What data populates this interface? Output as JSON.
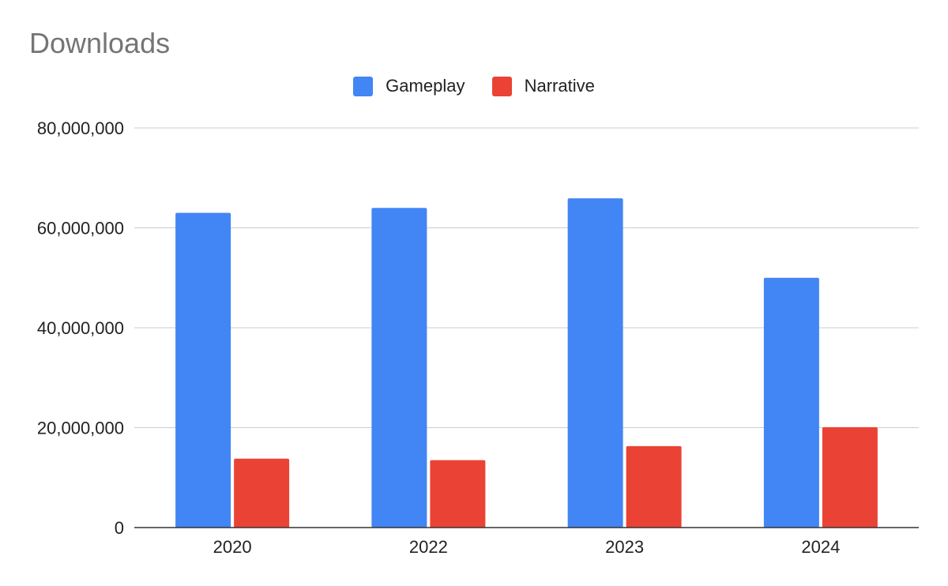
{
  "chart_data": {
    "type": "bar",
    "title": "Downloads",
    "categories": [
      "2020",
      "2022",
      "2023",
      "2024"
    ],
    "series": [
      {
        "name": "Gameplay",
        "color": "#4285F4",
        "values": [
          63000000,
          64000000,
          65900000,
          50000000
        ]
      },
      {
        "name": "Narrative",
        "color": "#EA4335",
        "values": [
          13800000,
          13500000,
          16300000,
          20100000
        ]
      }
    ],
    "ylim": [
      0,
      80000000
    ],
    "yticks": [
      0,
      20000000,
      40000000,
      60000000,
      80000000
    ],
    "ytick_labels": [
      "0",
      "20,000,000",
      "40,000,000",
      "60,000,000",
      "80,000,000"
    ],
    "legend_position": "top-center",
    "grid": true
  }
}
